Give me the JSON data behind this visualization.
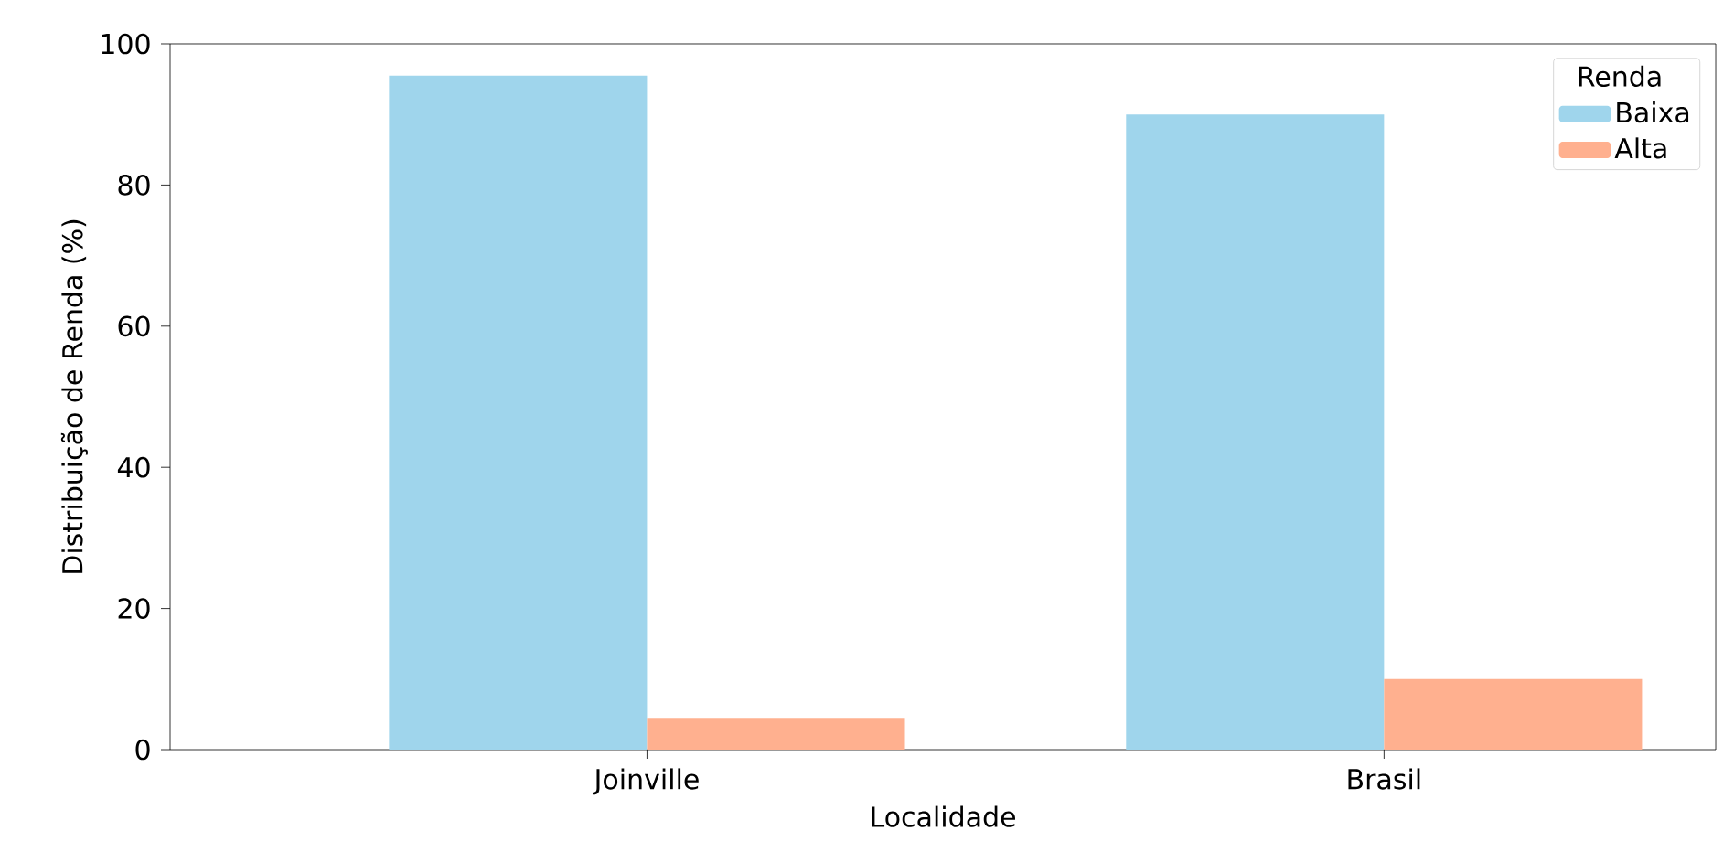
{
  "chart_data": {
    "type": "bar",
    "xlabel": "Localidade",
    "ylabel": "Distribuição de Renda (%)",
    "legend_title": "Renda",
    "categories": [
      "Joinville",
      "Brasil"
    ],
    "series": [
      {
        "name": "Baixa",
        "color": "#9fd5ec",
        "values": [
          95.5,
          90
        ]
      },
      {
        "name": "Alta",
        "color": "#ffb08f",
        "values": [
          4.5,
          10
        ]
      }
    ],
    "ylim": [
      0,
      100
    ],
    "yticks": [
      0,
      20,
      40,
      60,
      80,
      100
    ],
    "legend": "top right",
    "grid": false
  }
}
